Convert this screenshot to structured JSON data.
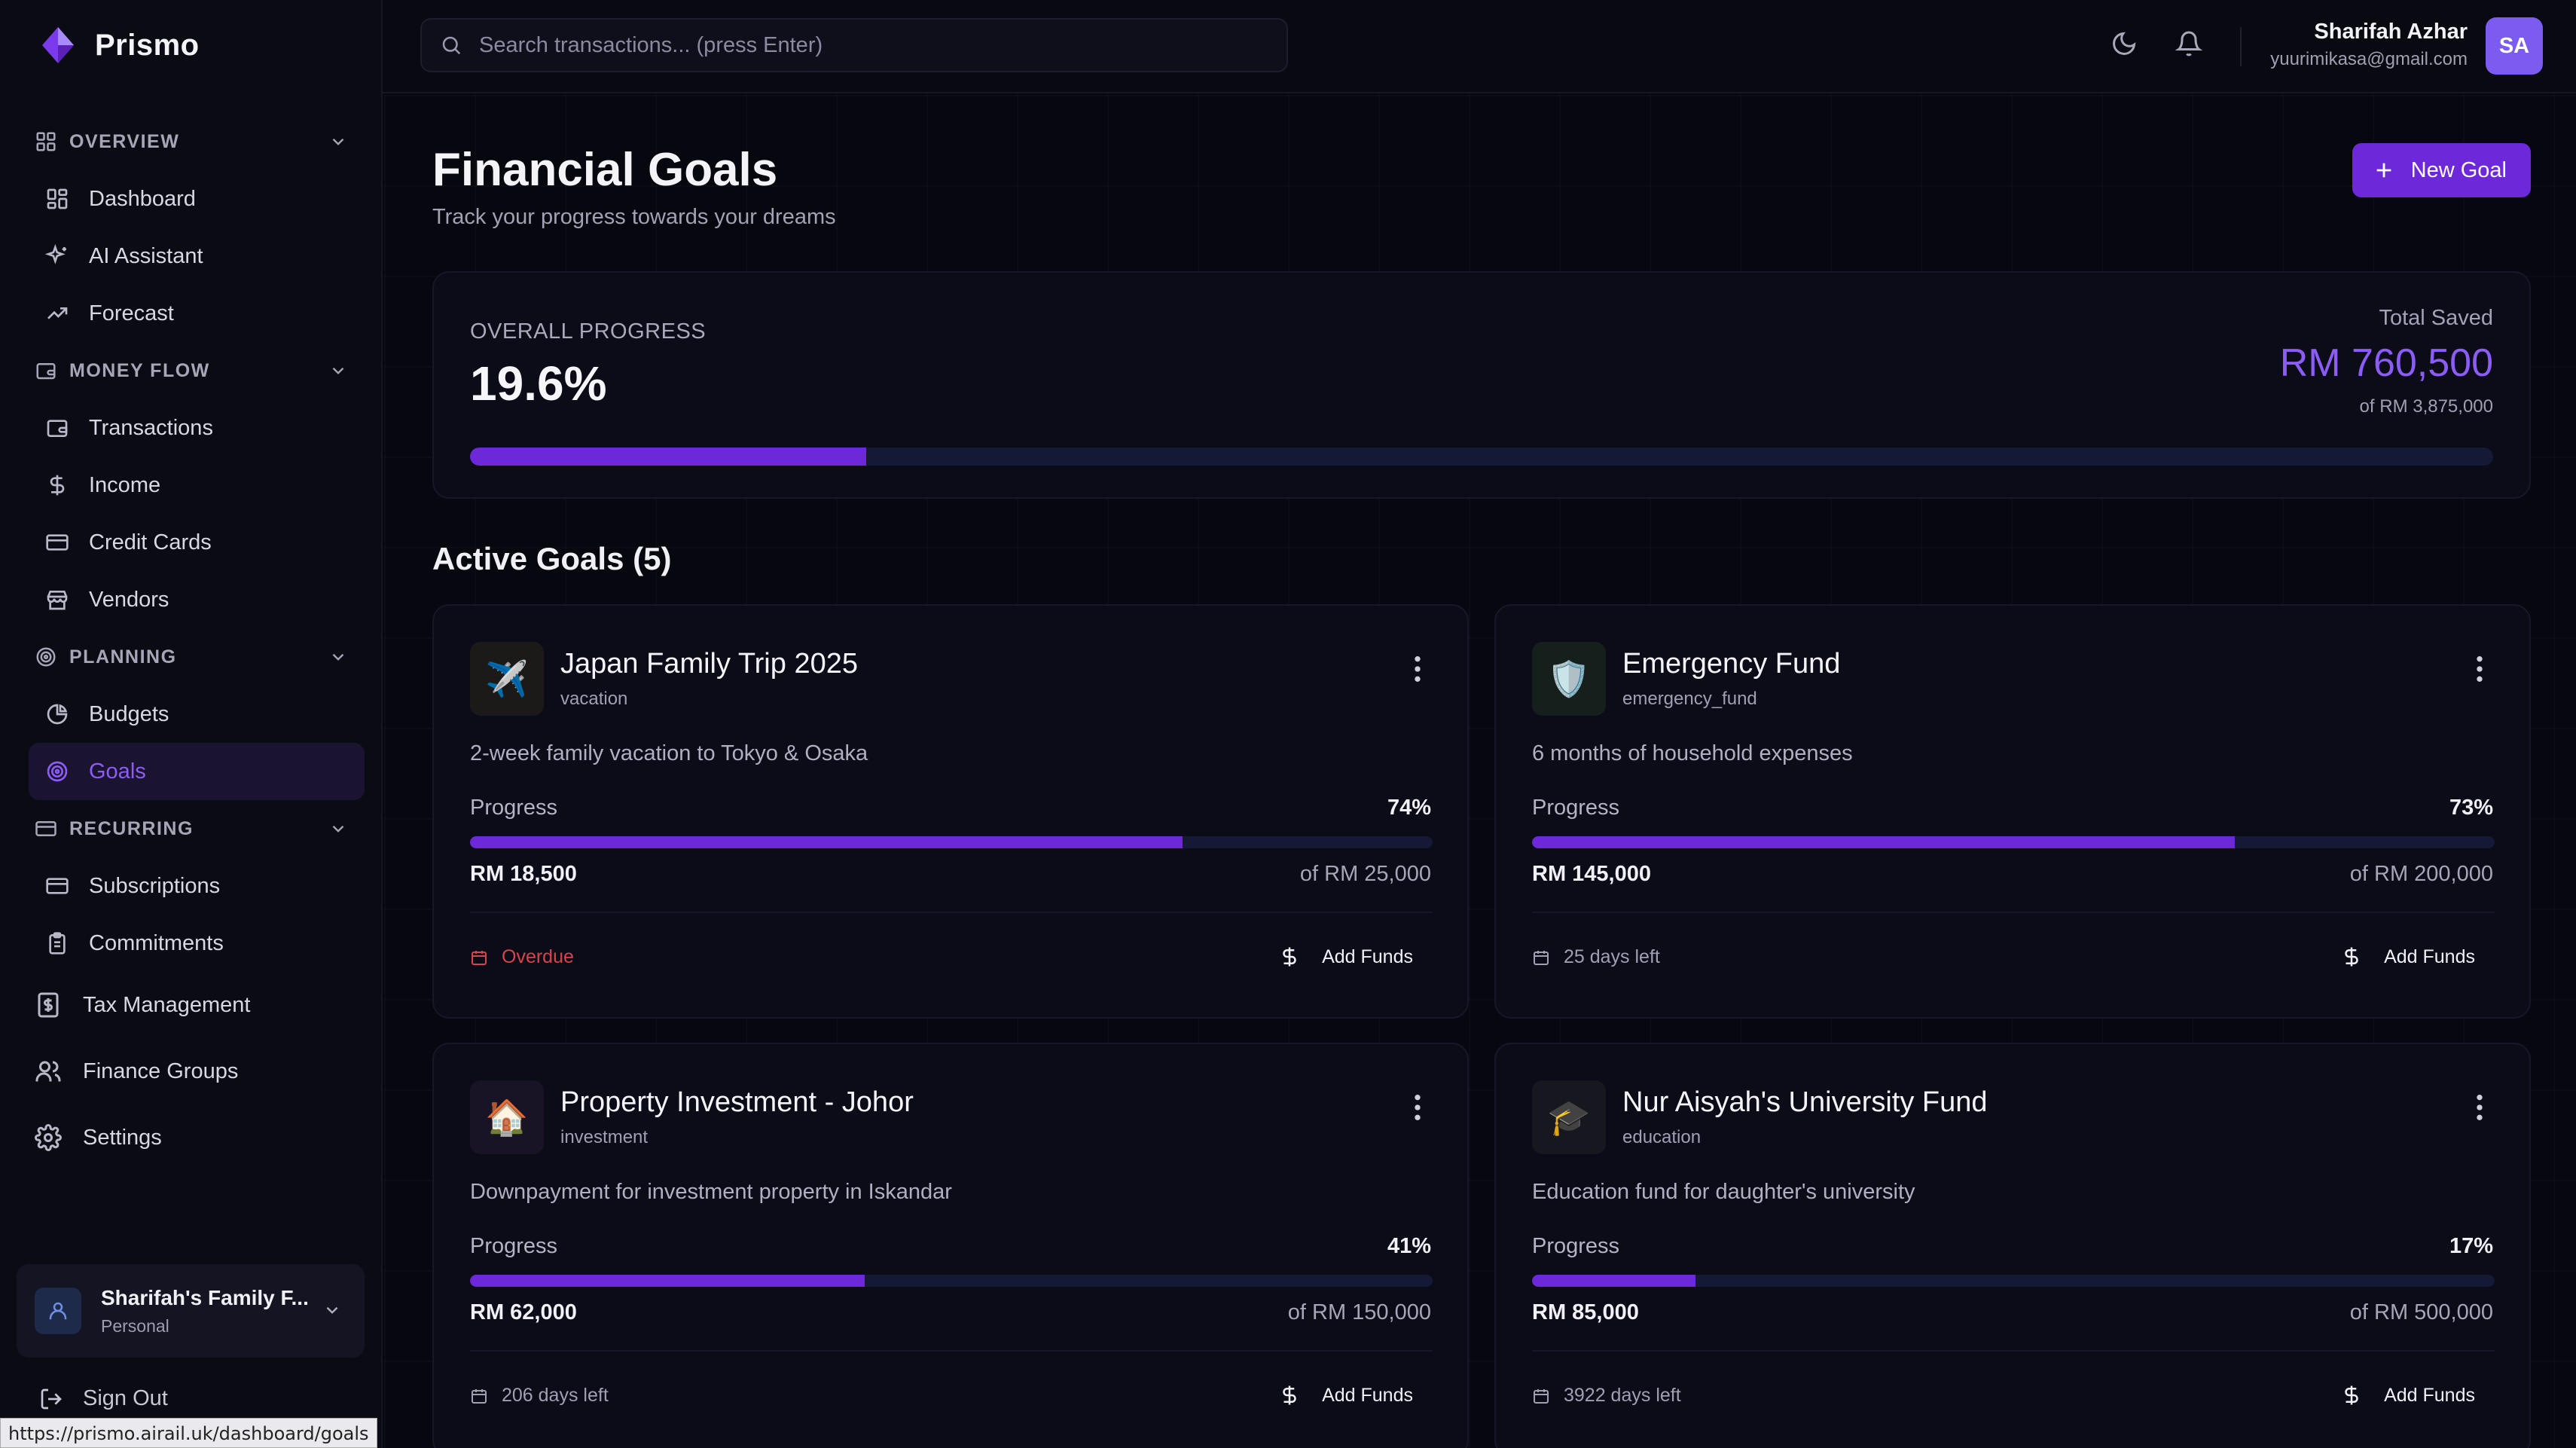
{
  "app": {
    "name": "Prismo"
  },
  "search": {
    "placeholder": "Search transactions... (press Enter)"
  },
  "user": {
    "name": "Sharifah Azhar",
    "email": "yuurimikasa@gmail.com",
    "initials": "SA"
  },
  "sidebar": {
    "overview": {
      "label": "OVERVIEW",
      "items": [
        "Dashboard",
        "AI Assistant",
        "Forecast"
      ]
    },
    "money_flow": {
      "label": "MONEY FLOW",
      "items": [
        "Transactions",
        "Income",
        "Credit Cards",
        "Vendors"
      ]
    },
    "planning": {
      "label": "PLANNING",
      "items": [
        "Budgets",
        "Goals"
      ]
    },
    "recurring": {
      "label": "RECURRING",
      "items": [
        "Subscriptions",
        "Commitments"
      ]
    },
    "extra": [
      "Tax Management",
      "Finance Groups",
      "Settings"
    ],
    "group": {
      "name": "Sharifah's Family F...",
      "type": "Personal"
    },
    "sign_out": "Sign Out"
  },
  "status_url": "https://prismo.airail.uk/dashboard/goals",
  "page": {
    "title": "Financial Goals",
    "subtitle": "Track your progress towards your dreams",
    "new_goal": "New Goal"
  },
  "overall": {
    "label": "OVERALL PROGRESS",
    "percent_text": "19.6%",
    "progress": 0.196,
    "total_label": "Total Saved",
    "total": "RM 760,500",
    "of": "of RM 3,875,000"
  },
  "active_title": "Active Goals (5)",
  "colors": {
    "accent": "#6d28d9",
    "accent_text": "#8b5cf6",
    "overdue": "#d6454b",
    "bar_track": "#141a35"
  },
  "goals": [
    {
      "emoji": "✈️",
      "name": "Japan Family Trip 2025",
      "category": "vacation",
      "description": "2-week family vacation to Tokyo & Osaka",
      "progress_label": "Progress",
      "percent_text": "74%",
      "progress": 0.74,
      "saved": "RM 18,500",
      "target": "of RM 25,000",
      "status": "Overdue",
      "overdue": true,
      "add_label": "Add Funds"
    },
    {
      "emoji": "🛡️",
      "name": "Emergency Fund",
      "category": "emergency_fund",
      "description": "6 months of household expenses",
      "progress_label": "Progress",
      "percent_text": "73%",
      "progress": 0.73,
      "saved": "RM 145,000",
      "target": "of RM 200,000",
      "status": "25 days left",
      "overdue": false,
      "add_label": "Add Funds"
    },
    {
      "emoji": "🏠",
      "name": "Property Investment - Johor",
      "category": "investment",
      "description": "Downpayment for investment property in Iskandar",
      "progress_label": "Progress",
      "percent_text": "41%",
      "progress": 0.41,
      "saved": "RM 62,000",
      "target": "of RM 150,000",
      "status": "206 days left",
      "overdue": false,
      "add_label": "Add Funds"
    },
    {
      "emoji": "🎓",
      "name": "Nur Aisyah's University Fund",
      "category": "education",
      "description": "Education fund for daughter's university",
      "progress_label": "Progress",
      "percent_text": "17%",
      "progress": 0.17,
      "saved": "RM 85,000",
      "target": "of RM 500,000",
      "status": "3922 days left",
      "overdue": false,
      "add_label": "Add Funds"
    }
  ]
}
